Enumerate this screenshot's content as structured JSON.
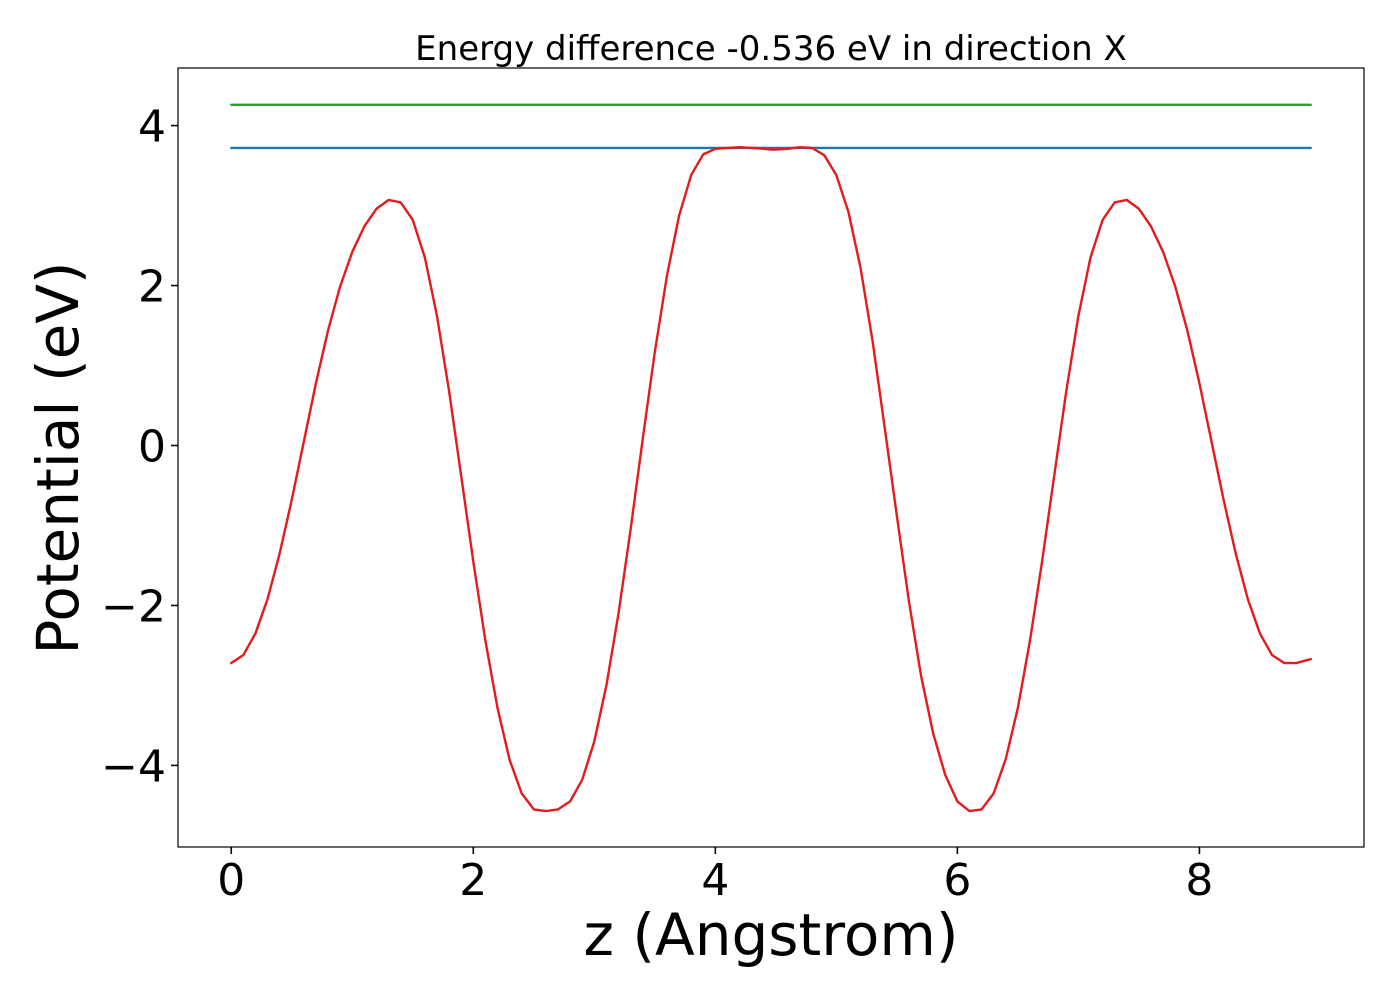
{
  "chart_data": {
    "type": "line",
    "title": "Energy difference -0.536 eV in direction X",
    "xlabel": "z (Angstrom)",
    "ylabel": "Potential (eV)",
    "xlim": [
      -0.44,
      9.36
    ],
    "ylim": [
      -5.02,
      4.72
    ],
    "x_ticks": [
      0,
      2,
      4,
      6,
      8
    ],
    "x_tick_labels": [
      "0",
      "2",
      "4",
      "6",
      "8"
    ],
    "y_ticks": [
      -4,
      -2,
      0,
      2,
      4
    ],
    "y_tick_labels": [
      "−4",
      "−2",
      "0",
      "2",
      "4"
    ],
    "grid": false,
    "legend": "none",
    "series": [
      {
        "color": "#2ca02c",
        "x": [
          0,
          8.92
        ],
        "y": [
          4.26,
          4.26
        ]
      },
      {
        "color": "#1f77b4",
        "x": [
          0,
          8.92
        ],
        "y": [
          3.72,
          3.72
        ]
      },
      {
        "color": "#e41a1c",
        "x": [
          0,
          0.1,
          0.2,
          0.3,
          0.4,
          0.5,
          0.6,
          0.7,
          0.8,
          0.9,
          1.0,
          1.1,
          1.2,
          1.3,
          1.4,
          1.5,
          1.6,
          1.7,
          1.8,
          1.9,
          2.0,
          2.1,
          2.2,
          2.3,
          2.4,
          2.5,
          2.6,
          2.7,
          2.8,
          2.9,
          3.0,
          3.1,
          3.2,
          3.3,
          3.4,
          3.5,
          3.6,
          3.7,
          3.8,
          3.9,
          4.0,
          4.1,
          4.2,
          4.3,
          4.4,
          4.46,
          4.5,
          4.6,
          4.7,
          4.8,
          4.9,
          5.0,
          5.1,
          5.2,
          5.3,
          5.4,
          5.5,
          5.6,
          5.7,
          5.8,
          5.9,
          6.0,
          6.1,
          6.2,
          6.3,
          6.4,
          6.5,
          6.6,
          6.7,
          6.8,
          6.9,
          7.0,
          7.1,
          7.2,
          7.3,
          7.4,
          7.5,
          7.6,
          7.7,
          7.8,
          7.9,
          8.0,
          8.1,
          8.2,
          8.3,
          8.4,
          8.5,
          8.6,
          8.7,
          8.8,
          8.92
        ],
        "y": [
          -2.72,
          -2.62,
          -2.35,
          -1.92,
          -1.35,
          -0.68,
          0.05,
          0.78,
          1.44,
          1.99,
          2.42,
          2.74,
          2.96,
          3.07,
          3.04,
          2.82,
          2.35,
          1.62,
          0.68,
          -0.38,
          -1.45,
          -2.44,
          -3.28,
          -3.93,
          -4.35,
          -4.55,
          -4.57,
          -4.55,
          -4.45,
          -4.18,
          -3.7,
          -3.0,
          -2.1,
          -1.05,
          0.08,
          1.17,
          2.12,
          2.87,
          3.38,
          3.64,
          3.71,
          3.72,
          3.73,
          3.72,
          3.71,
          3.7,
          3.7,
          3.71,
          3.73,
          3.72,
          3.63,
          3.38,
          2.92,
          2.22,
          1.3,
          0.22,
          -0.88,
          -1.95,
          -2.88,
          -3.6,
          -4.12,
          -4.45,
          -4.57,
          -4.55,
          -4.35,
          -3.92,
          -3.28,
          -2.44,
          -1.45,
          -0.38,
          0.68,
          1.62,
          2.35,
          2.82,
          3.04,
          3.07,
          2.96,
          2.74,
          2.42,
          1.99,
          1.44,
          0.78,
          0.05,
          -0.68,
          -1.35,
          -1.92,
          -2.35,
          -2.62,
          -2.72,
          -2.72,
          -2.67
        ]
      }
    ]
  }
}
